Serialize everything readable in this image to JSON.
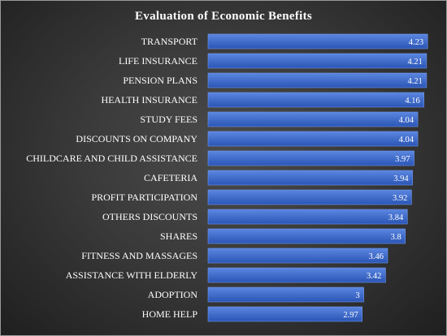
{
  "chart_data": {
    "type": "bar",
    "orientation": "horizontal",
    "title": "Evaluation of Economic Benefits",
    "xlabel": "",
    "ylabel": "",
    "categories": [
      "TRANSPORT",
      "LIFE INSURANCE",
      "PENSION PLANS",
      "HEALTH INSURANCE",
      "STUDY FEES",
      "DISCOUNTS ON COMPANY",
      "CHILDCARE AND CHILD ASSISTANCE",
      "CAFETERIA",
      "PROFIT PARTICIPATION",
      "OTHERS DISCOUNTS",
      "SHARES",
      "FITNESS AND MASSAGES",
      "ASSISTANCE WITH ELDERLY",
      "ADOPTION",
      "HOME HELP"
    ],
    "values": [
      4.23,
      4.21,
      4.21,
      4.16,
      4.04,
      4.04,
      3.97,
      3.94,
      3.92,
      3.84,
      3.8,
      3.46,
      3.42,
      3,
      2.97
    ],
    "value_labels": [
      "4.23",
      "4.21",
      "4.21",
      "4.16",
      "4.04",
      "4.04",
      "3.97",
      "3.94",
      "3.92",
      "3.84",
      "3.8",
      "3.46",
      "3.42",
      "3",
      "2.97"
    ],
    "xlim": [
      0,
      4.29
    ],
    "grid": false,
    "legend": "none",
    "colors": {
      "bar_top": "#5b86e0",
      "bar_bottom": "#2a55b5",
      "bar_edge": "#6f97ee",
      "background": "#3a3a3a",
      "text": "#ffffff"
    }
  }
}
